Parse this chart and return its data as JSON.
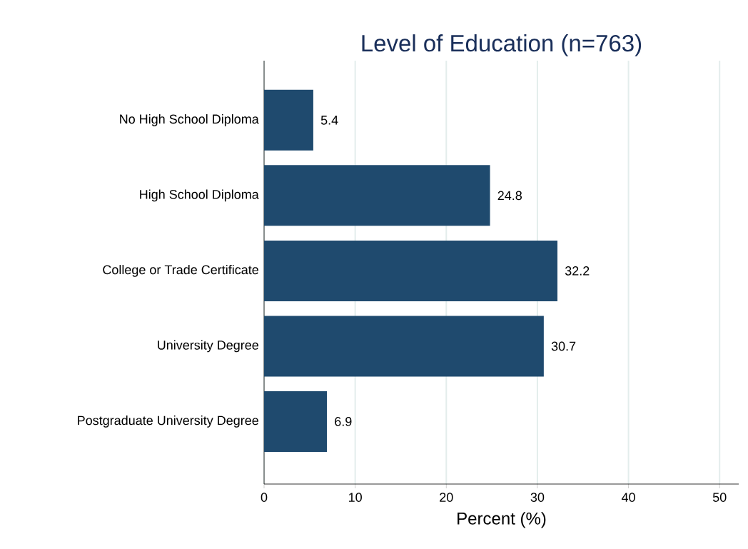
{
  "chart_data": {
    "type": "bar",
    "orientation": "horizontal",
    "title": "Level of Education (n=763)",
    "xlabel": "Percent (%)",
    "categories": [
      "No High School Diploma",
      "High School Diploma",
      "College or Trade Certificate",
      "University Degree",
      "Postgraduate University Degree"
    ],
    "values": [
      5.4,
      24.8,
      32.2,
      30.7,
      6.9
    ],
    "color": "#1f4a6e",
    "data_labels": true,
    "xlim": [
      0,
      52.1
    ],
    "xticks": [
      0,
      10,
      20,
      30,
      40,
      50
    ],
    "grid": "x"
  }
}
